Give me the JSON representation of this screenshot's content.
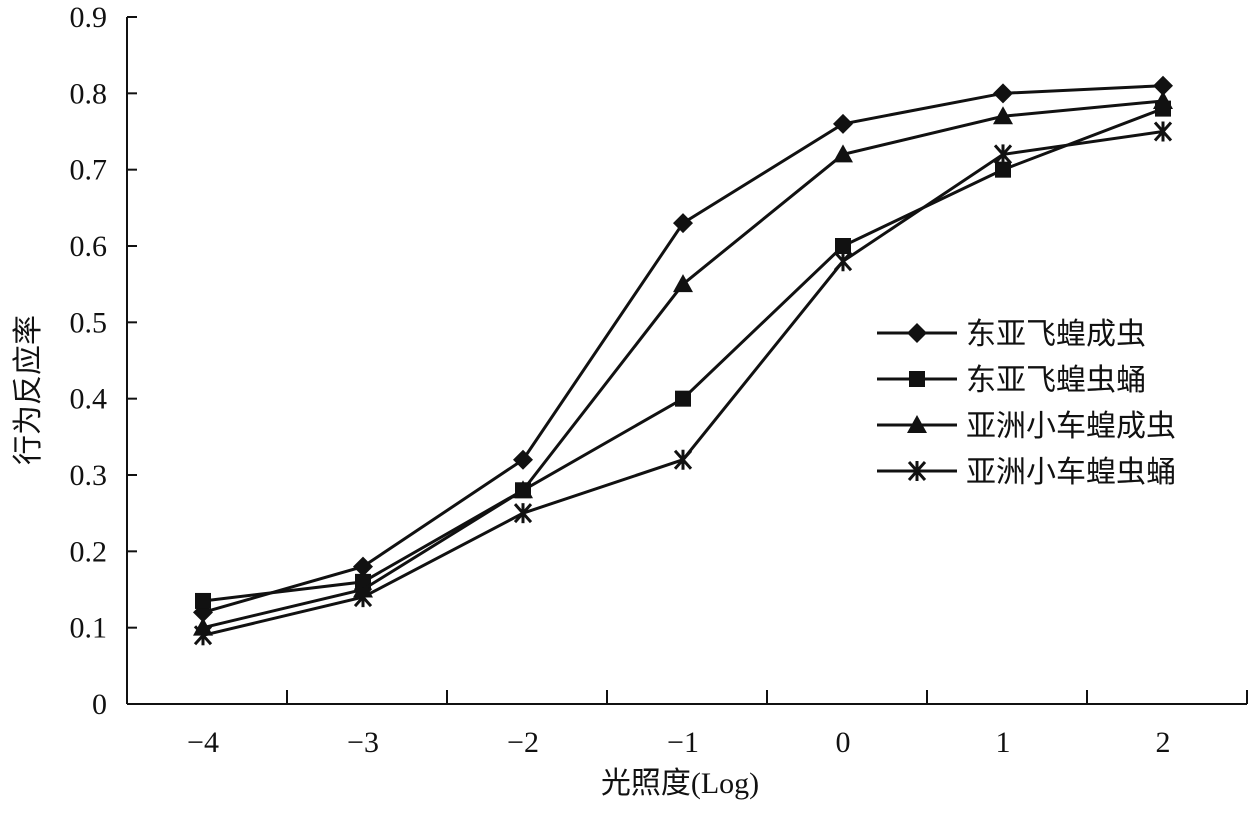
{
  "chart_data": {
    "type": "line",
    "xlabel": "光照度(Log)",
    "ylabel": "行为反应率",
    "categories": [
      "−4",
      "−3",
      "−2",
      "−1",
      "0",
      "1",
      "2"
    ],
    "ylim": [
      0,
      0.9
    ],
    "yticks": [
      "0",
      "0.1",
      "0.2",
      "0.3",
      "0.4",
      "0.5",
      "0.6",
      "0.7",
      "0.8",
      "0.9"
    ],
    "grid": false,
    "legend_position": "right",
    "series": [
      {
        "name": "东亚飞蝗成虫",
        "marker": "diamond",
        "values": [
          0.12,
          0.18,
          0.32,
          0.63,
          0.76,
          0.8,
          0.81
        ]
      },
      {
        "name": "东亚飞蝗虫蛹",
        "marker": "square",
        "values": [
          0.135,
          0.16,
          0.28,
          0.4,
          0.6,
          0.7,
          0.78
        ]
      },
      {
        "name": "亚洲小车蝗成虫",
        "marker": "triangle",
        "values": [
          0.1,
          0.15,
          0.28,
          0.55,
          0.72,
          0.77,
          0.79
        ]
      },
      {
        "name": "亚洲小车蝗虫蛹",
        "marker": "star",
        "values": [
          0.09,
          0.14,
          0.25,
          0.32,
          0.58,
          0.72,
          0.75
        ]
      }
    ],
    "colors": {
      "line": "#111111"
    }
  }
}
